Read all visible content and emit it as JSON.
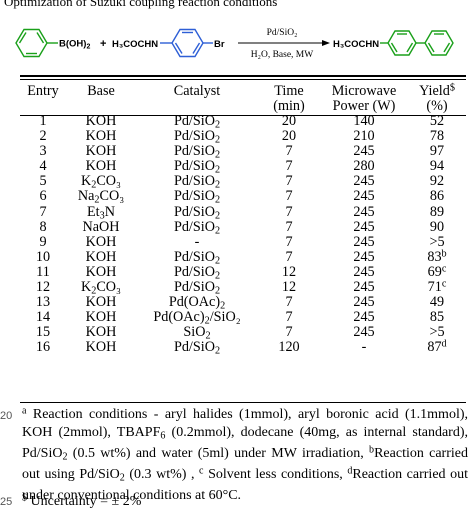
{
  "caption_fragment": "Optimization of Suzuki coupling reaction conditions",
  "scheme": {
    "reactant1_label": "B(OH)",
    "reactant1_sub": "2",
    "plus": "+",
    "reactant2_label": "H₃COCHN",
    "reactant2_halide": "Br",
    "arrow_top": "Pd/SiO₂",
    "arrow_bottom": "H₂O, Base, MW",
    "product_label": "H₃COCHN",
    "colors": {
      "benzene": "#1aa01a",
      "reactant2_ring": "#2e5fd6",
      "product_ring": "#1aa01a",
      "text": "#000000"
    }
  },
  "table": {
    "headers": {
      "entry": "Entry",
      "base": "Base",
      "catalyst": "Catalyst",
      "time_line1": "Time",
      "time_line2": "(min)",
      "power_line1": "Microwave",
      "power_line2": "Power (W)",
      "yield_line1": "Yield",
      "yield_sup": "$",
      "yield_line2": "(%)"
    },
    "rows": [
      {
        "entry": "1",
        "base_main": "KOH",
        "base_sub": "",
        "base_tail": "",
        "cat_main": "Pd/SiO",
        "cat_sub": "2",
        "cat_tail": "",
        "time": "20",
        "power": "140",
        "yield_main": "52",
        "yield_sup": ""
      },
      {
        "entry": "2",
        "base_main": "KOH",
        "base_sub": "",
        "base_tail": "",
        "cat_main": "Pd/SiO",
        "cat_sub": "2",
        "cat_tail": "",
        "time": "20",
        "power": "210",
        "yield_main": "78",
        "yield_sup": ""
      },
      {
        "entry": "3",
        "base_main": "KOH",
        "base_sub": "",
        "base_tail": "",
        "cat_main": "Pd/SiO",
        "cat_sub": "2",
        "cat_tail": "",
        "time": "7",
        "power": "245",
        "yield_main": "97",
        "yield_sup": ""
      },
      {
        "entry": "4",
        "base_main": "KOH",
        "base_sub": "",
        "base_tail": "",
        "cat_main": "Pd/SiO",
        "cat_sub": "2",
        "cat_tail": "",
        "time": "7",
        "power": "280",
        "yield_main": "94",
        "yield_sup": ""
      },
      {
        "entry": "5",
        "base_main": "K",
        "base_sub": "2",
        "base_tail": "CO₃",
        "cat_main": "Pd/SiO",
        "cat_sub": "2",
        "cat_tail": "",
        "time": "7",
        "power": "245",
        "yield_main": "92",
        "yield_sup": ""
      },
      {
        "entry": "6",
        "base_main": "Na",
        "base_sub": "2",
        "base_tail": "CO₃",
        "cat_main": "Pd/SiO",
        "cat_sub": "2",
        "cat_tail": "",
        "time": "7",
        "power": "245",
        "yield_main": "86",
        "yield_sup": ""
      },
      {
        "entry": "7",
        "base_main": "Et",
        "base_sub": "3",
        "base_tail": "N",
        "cat_main": "Pd/SiO",
        "cat_sub": "2",
        "cat_tail": "",
        "time": "7",
        "power": "245",
        "yield_main": "89",
        "yield_sup": ""
      },
      {
        "entry": "8",
        "base_main": "NaOH",
        "base_sub": "",
        "base_tail": "",
        "cat_main": "Pd/SiO",
        "cat_sub": "2",
        "cat_tail": "",
        "time": "7",
        "power": "245",
        "yield_main": "90",
        "yield_sup": ""
      },
      {
        "entry": "9",
        "base_main": "KOH",
        "base_sub": "",
        "base_tail": "",
        "cat_main": "-",
        "cat_sub": "",
        "cat_tail": "",
        "time": "7",
        "power": "245",
        "yield_main": ">5",
        "yield_sup": ""
      },
      {
        "entry": "10",
        "base_main": "KOH",
        "base_sub": "",
        "base_tail": "",
        "cat_main": "Pd/SiO",
        "cat_sub": "2",
        "cat_tail": "",
        "time": "7",
        "power": "245",
        "yield_main": "83",
        "yield_sup": "b"
      },
      {
        "entry": "11",
        "base_main": "KOH",
        "base_sub": "",
        "base_tail": "",
        "cat_main": "Pd/SiO",
        "cat_sub": "2",
        "cat_tail": "",
        "time": "12",
        "power": "245",
        "yield_main": "69",
        "yield_sup": "c"
      },
      {
        "entry": "12",
        "base_main": "K",
        "base_sub": "2",
        "base_tail": "CO₃",
        "cat_main": "Pd/SiO",
        "cat_sub": "2",
        "cat_tail": "",
        "time": "12",
        "power": "245",
        "yield_main": "71",
        "yield_sup": "c"
      },
      {
        "entry": "13",
        "base_main": "KOH",
        "base_sub": "",
        "base_tail": "",
        "cat_main": "Pd(OAc)",
        "cat_sub": "2",
        "cat_tail": "",
        "time": "7",
        "power": "245",
        "yield_main": "49",
        "yield_sup": ""
      },
      {
        "entry": "14",
        "base_main": "KOH",
        "base_sub": "",
        "base_tail": "",
        "cat_main": "Pd(OAc)",
        "cat_sub": "2",
        "cat_tail": "/SiO₂",
        "time": "7",
        "power": "245",
        "yield_main": "85",
        "yield_sup": ""
      },
      {
        "entry": "15",
        "base_main": "KOH",
        "base_sub": "",
        "base_tail": "",
        "cat_main": "SiO",
        "cat_sub": "2",
        "cat_tail": "",
        "time": "7",
        "power": "245",
        "yield_main": ">5",
        "yield_sup": ""
      },
      {
        "entry": "16",
        "base_main": "KOH",
        "base_sub": "",
        "base_tail": "",
        "cat_main": "Pd/SiO",
        "cat_sub": "2",
        "cat_tail": "",
        "time": "120",
        "power": "-",
        "yield_main": "87",
        "yield_sup": "d"
      }
    ]
  },
  "footnotes": {
    "line_no_1": "20",
    "line_no_2": "25",
    "sup_a": "a",
    "text_a": " Reaction conditions - aryl halides (1mmol), aryl boronic acid (1.1mmol), KOH (2mmol), TBAPF",
    "text_a_sub": "6",
    "text_a2": " (0.2mmol), dodecane (40mg, as internal standard), Pd/SiO",
    "text_a2_sub": "2",
    "text_a3": " (0.5 wt%) and water (5ml) under MW irradiation, ",
    "sup_b": "b",
    "text_b": "Reaction carried out using Pd/SiO",
    "text_b_sub": "2",
    "text_b2": " (0.3 wt%) , ",
    "sup_c": "c",
    "text_c": " Solvent less conditions, ",
    "sup_d": "d",
    "text_d": "Reaction carried out under conventional conditions at 60°C.",
    "uncertainty_sup": "$",
    "uncertainty": " Uncertainty = ± 2%"
  }
}
